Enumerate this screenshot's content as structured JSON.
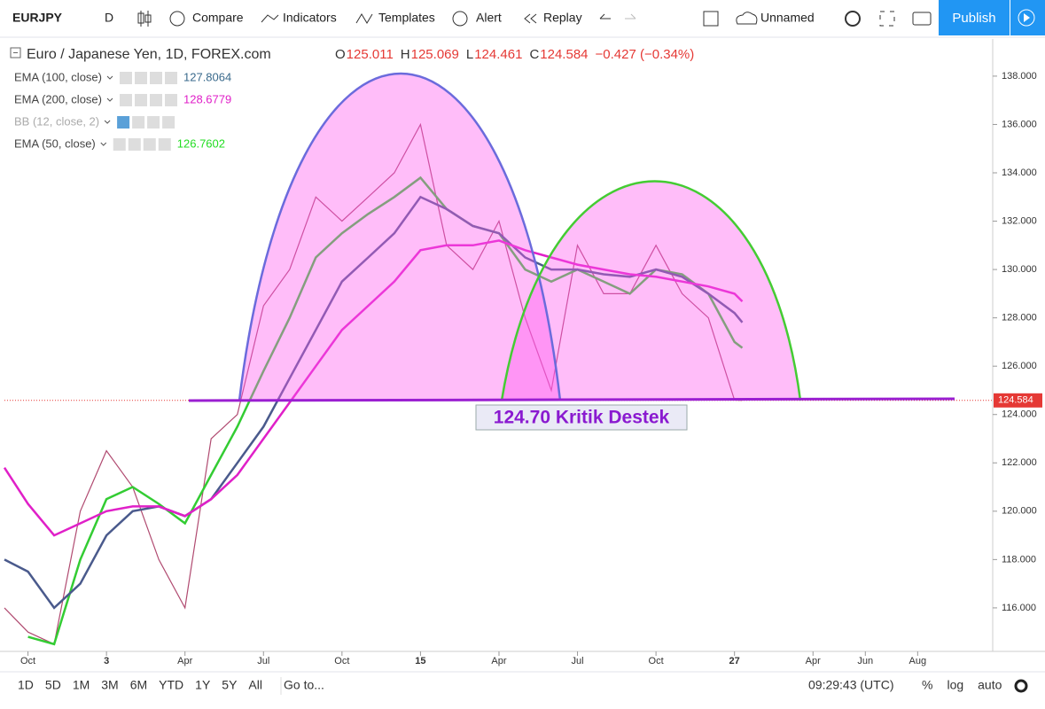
{
  "toolbar": {
    "symbol": "EURJPY",
    "interval": "D",
    "items": [
      "Compare",
      "Indicators",
      "Templates",
      "Alert",
      "Replay"
    ],
    "layout_name": "Unnamed",
    "publish": "Publish"
  },
  "header": {
    "ohlc": [
      {
        "key": "O",
        "value": "125.011"
      },
      {
        "key": "H",
        "value": "125.069"
      },
      {
        "key": "L",
        "value": "124.461"
      },
      {
        "key": "C",
        "value": "124.584"
      }
    ],
    "change": "−0.427 (−0.34%)"
  },
  "legend": [
    {
      "name": "EMA (100, close)",
      "value": "127.8064",
      "color": "#3a6a8c"
    },
    {
      "name": "EMA (200, close)",
      "value": "128.6779",
      "color": "#e020c8"
    },
    {
      "name": "BB (12, close, 2)",
      "value": null,
      "color": "#aaaaaa"
    },
    {
      "name": "EMA (50, close)",
      "value": "126.7602",
      "color": "#22dd22"
    }
  ],
  "chart_data": {
    "type": "line",
    "x": [
      -0.9,
      0,
      1,
      2,
      3,
      4,
      5,
      6,
      7,
      8,
      9,
      10,
      11,
      12,
      13,
      14,
      15,
      16,
      17,
      18,
      19,
      20,
      21,
      22,
      23,
      24,
      25,
      26,
      27,
      27.3
    ],
    "series": [
      {
        "name": "Euro / Japanese Yen, 1D, FOREX.com",
        "color": "#b04a70",
        "values": [
          116,
          115,
          114.5,
          120,
          122.5,
          121,
          118,
          116,
          123,
          124,
          128.5,
          130,
          133,
          132,
          133,
          134,
          136,
          131,
          130,
          132,
          128,
          125,
          131,
          129,
          129,
          131,
          129,
          128,
          124.6,
          124.584
        ]
      },
      {
        "name": "EMA (50, close)",
        "color": "#33cc33",
        "values": [
          null,
          114.8,
          114.5,
          118,
          120.5,
          121,
          120.3,
          119.5,
          121.5,
          123.5,
          125.8,
          128,
          130.5,
          131.5,
          132.3,
          133,
          133.8,
          132.5,
          131.8,
          131.5,
          130,
          129.5,
          130,
          129.5,
          129,
          130,
          129.8,
          129,
          127,
          126.76
        ]
      },
      {
        "name": "EMA (100, close)",
        "color": "#4a5a8c",
        "values": [
          118,
          117.5,
          116,
          117,
          119,
          120,
          120.2,
          119.8,
          120.5,
          122,
          123.5,
          125.5,
          127.5,
          129.5,
          130.5,
          131.5,
          133,
          132.5,
          131.8,
          131.5,
          130.5,
          130,
          130,
          129.8,
          129.7,
          130,
          129.7,
          129,
          128.2,
          127.81
        ]
      },
      {
        "name": "EMA (200, close)",
        "color": "#e020c8",
        "values": [
          121.8,
          120.3,
          119,
          119.5,
          120,
          120.2,
          120.2,
          119.8,
          120.5,
          121.5,
          123,
          124.5,
          126,
          127.5,
          128.5,
          129.5,
          130.8,
          131,
          131,
          131.2,
          130.8,
          130.5,
          130.2,
          130,
          129.8,
          129.7,
          129.5,
          129.3,
          129,
          128.68
        ]
      }
    ],
    "xlim": [
      -0.9,
      36.8
    ],
    "ylim": [
      114.2,
      139.5
    ],
    "xticks": [
      {
        "value": 0,
        "label": "Oct"
      },
      3,
      {
        "value": 6,
        "label": "Apr"
      },
      {
        "value": 9,
        "label": "Jul"
      },
      {
        "value": 12,
        "label": "Oct"
      },
      15,
      {
        "value": 18,
        "label": "Apr"
      },
      {
        "value": 21,
        "label": "Jul"
      },
      {
        "value": 24,
        "label": "Oct"
      },
      27,
      {
        "value": 30,
        "label": "Apr"
      },
      {
        "value": 32,
        "label": "Jun"
      },
      {
        "value": 34,
        "label": "Aug"
      }
    ],
    "yticks": [
      {
        "value": 116,
        "label": "116.000"
      },
      {
        "value": 118,
        "label": "118.000"
      },
      {
        "value": 120,
        "label": "120.000"
      },
      {
        "value": 122,
        "label": "122.000"
      },
      {
        "value": 124,
        "label": "124.000"
      },
      {
        "value": 126,
        "label": "126.000"
      },
      {
        "value": 128,
        "label": "128.000"
      },
      {
        "value": 130,
        "label": "130.000"
      },
      {
        "value": 132,
        "label": "132.000"
      },
      {
        "value": 134,
        "label": "134.000"
      },
      {
        "value": 136,
        "label": "136.000"
      },
      {
        "value": 138,
        "label": "138.000"
      }
    ],
    "last_price": {
      "value": 124.584,
      "label": "124.584"
    },
    "annotation": "124.70 Kritik Destek"
  },
  "bottom_bar": {
    "ranges": [
      "1D",
      "5D",
      "1M",
      "3M",
      "6M",
      "YTD",
      "1Y",
      "5Y",
      "All"
    ],
    "goto": "Go to...",
    "time": "09:29:43 (UTC)",
    "options": [
      "%",
      "log",
      "auto"
    ]
  }
}
